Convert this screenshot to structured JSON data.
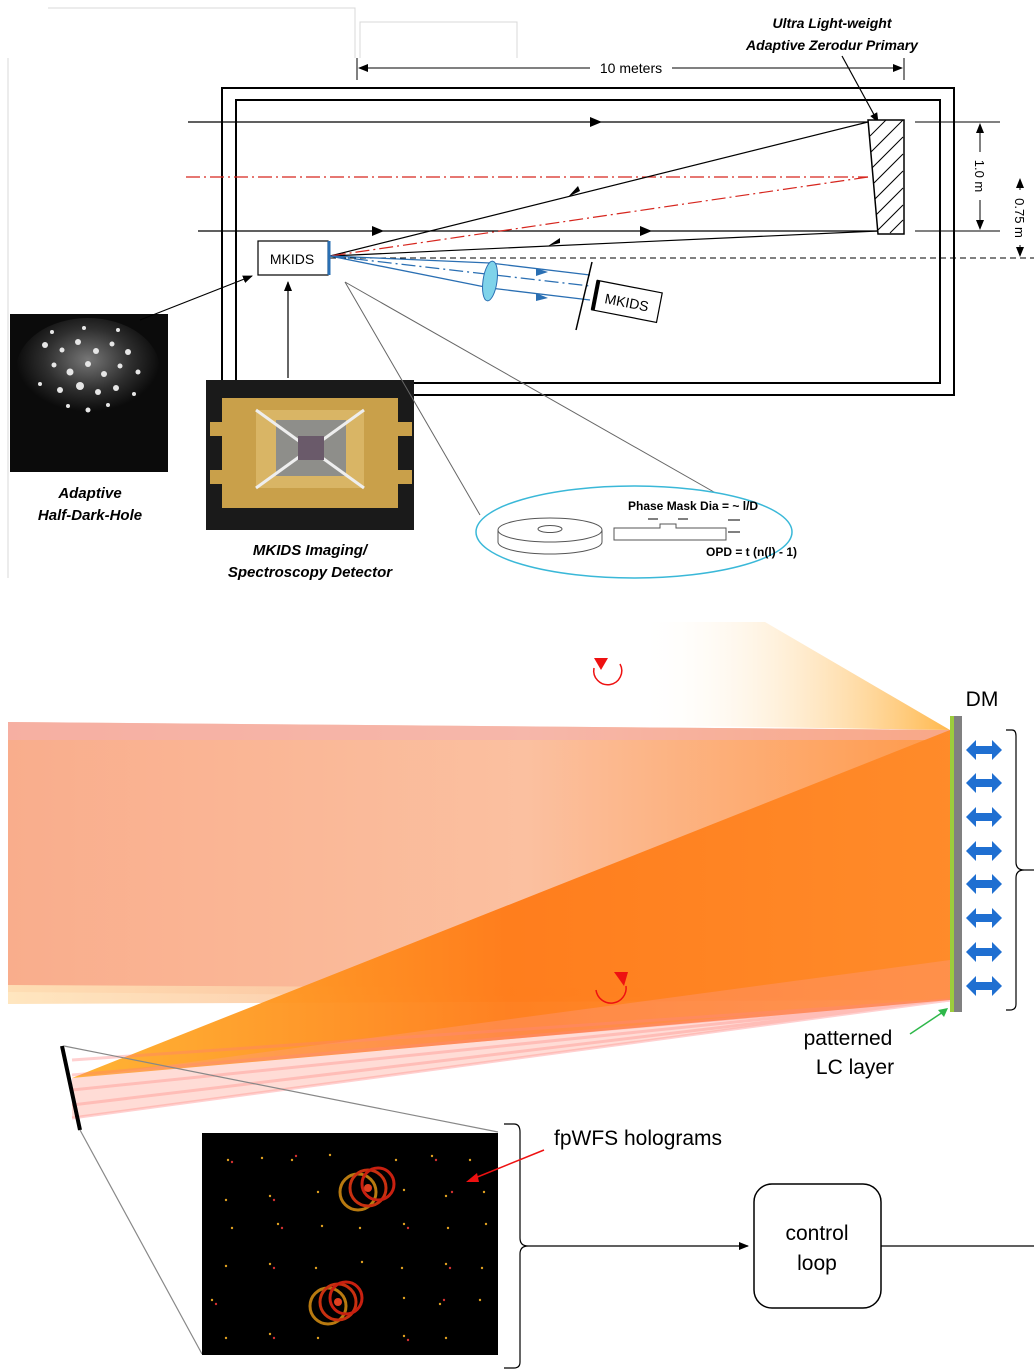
{
  "top_diagram": {
    "primary_label_line1": "Ultra Light-weight",
    "primary_label_line2": "Adaptive Zerodur Primary",
    "length_label": "10 meters",
    "dim_1": "1.0 m",
    "dim_2": "0.75 m",
    "mkids_main": "MKIDS",
    "mkids_side": "MKIDS",
    "caption_left_line1": "Adaptive",
    "caption_left_line2": "Half-Dark-Hole",
    "caption_mid_line1": "MKIDS Imaging/",
    "caption_mid_line2": "Spectroscopy Detector",
    "phase_mask_label": "Phase Mask Dia = ~ l/D",
    "opd_label": "OPD = t (n(l) - 1)"
  },
  "bottom_diagram": {
    "dm_label": "DM",
    "lc_label_line1": "patterned",
    "lc_label_line2": "LC layer",
    "holograms_label": "fpWFS holograms",
    "control_line1": "control",
    "control_line2": "loop"
  },
  "colors": {
    "beam_orange": "#ff7a1a",
    "beam_pink": "#f7a98a",
    "beam_yellow": "#ffd27a",
    "actuator_blue": "#1f6fd1",
    "dm_gray": "#808080",
    "lc_green": "#9ccc3c",
    "optical_red": "#d6261e",
    "light_blue": "#2a6fb3",
    "ellipse_cyan": "#3ab8d8"
  }
}
